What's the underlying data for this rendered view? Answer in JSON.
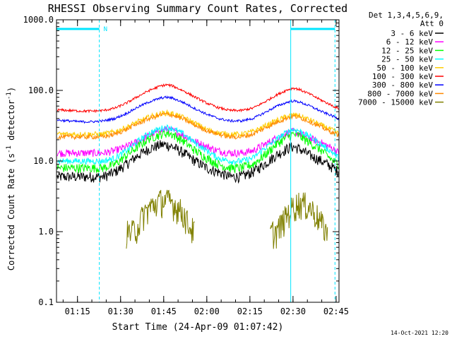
{
  "chart_data": {
    "type": "line",
    "title": "RHESSI Observing Summary Count Rates, Corrected",
    "xlabel": "Start Time (24-Apr-09 01:07:42)",
    "ylabel_main": "Corrected Count Rate (s",
    "ylabel_sup1": "-1",
    "ylabel_mid": " detector",
    "ylabel_sup2": "-1",
    "ylabel_end": ")",
    "y_scale": "log",
    "ylim": [
      0.1,
      1000
    ],
    "xlim_minutes": [
      67.7,
      166
    ],
    "x_ticks": [
      {
        "minutes": 75,
        "label": "01:15"
      },
      {
        "minutes": 90,
        "label": "01:30"
      },
      {
        "minutes": 105,
        "label": "01:45"
      },
      {
        "minutes": 120,
        "label": "02:00"
      },
      {
        "minutes": 135,
        "label": "02:15"
      },
      {
        "minutes": 150,
        "label": "02:30"
      },
      {
        "minutes": 165,
        "label": "02:45"
      }
    ],
    "y_ticks": [
      {
        "value": 0.1,
        "label": "0.1"
      },
      {
        "value": 1,
        "label": "1.0"
      },
      {
        "value": 10,
        "label": "10.0"
      },
      {
        "value": 100,
        "label": "100.0"
      },
      {
        "value": 1000,
        "label": "1000.0"
      }
    ],
    "legend_header": [
      "Det 1,3,4,5,6,9,",
      "Att 0"
    ],
    "legend_position": "right",
    "series": [
      {
        "name": "3 - 6 keV",
        "color": "#000000",
        "x": [
          68,
          72,
          76,
          80,
          84,
          88,
          92,
          96,
          100,
          104,
          106,
          108,
          112,
          116,
          120,
          124,
          128,
          132,
          136,
          140,
          144,
          148,
          150,
          152,
          156,
          160,
          164,
          166
        ],
        "y": [
          6,
          6,
          6,
          6,
          6,
          7,
          9,
          12,
          15,
          17,
          17,
          16,
          13,
          10,
          8,
          7,
          6,
          6,
          7,
          9,
          12,
          15,
          16,
          15,
          12,
          10,
          8,
          7
        ]
      },
      {
        "name": "6 - 12 keV",
        "color": "#ff00ff",
        "x": [
          68,
          72,
          76,
          80,
          84,
          88,
          92,
          96,
          100,
          104,
          106,
          108,
          112,
          116,
          120,
          124,
          128,
          132,
          136,
          140,
          144,
          148,
          150,
          152,
          156,
          160,
          164,
          166
        ],
        "y": [
          13,
          13,
          13,
          13,
          13,
          14,
          16,
          19,
          23,
          27,
          28,
          27,
          23,
          19,
          16,
          14,
          13,
          13,
          14,
          17,
          21,
          25,
          26,
          25,
          21,
          18,
          15,
          13
        ]
      },
      {
        "name": "12 - 25 keV",
        "color": "#00ff00",
        "x": [
          68,
          72,
          76,
          80,
          84,
          88,
          92,
          96,
          100,
          104,
          106,
          108,
          112,
          116,
          120,
          124,
          128,
          132,
          136,
          140,
          144,
          148,
          150,
          152,
          156,
          160,
          164,
          166
        ],
        "y": [
          8,
          8,
          8,
          8,
          8,
          9,
          12,
          16,
          21,
          24,
          25,
          24,
          19,
          14,
          11,
          9,
          8,
          8,
          9,
          12,
          17,
          22,
          24,
          23,
          18,
          14,
          10,
          9
        ]
      },
      {
        "name": "25 - 50 keV",
        "color": "#00ffff",
        "x": [
          68,
          72,
          76,
          80,
          84,
          88,
          92,
          96,
          100,
          104,
          106,
          108,
          112,
          116,
          120,
          124,
          128,
          132,
          136,
          140,
          144,
          148,
          150,
          152,
          156,
          160,
          164,
          166
        ],
        "y": [
          10,
          10,
          10,
          10,
          10,
          11,
          14,
          19,
          25,
          29,
          30,
          29,
          24,
          18,
          14,
          11,
          10,
          10,
          11,
          15,
          20,
          26,
          28,
          27,
          22,
          17,
          13,
          11
        ]
      },
      {
        "name": "50 - 100 keV",
        "color": "#ffcc00",
        "x": [
          68,
          72,
          76,
          80,
          84,
          88,
          92,
          96,
          100,
          104,
          106,
          108,
          112,
          116,
          120,
          124,
          128,
          132,
          136,
          140,
          144,
          148,
          150,
          152,
          156,
          160,
          164,
          166
        ],
        "y": [
          24,
          24,
          24,
          24,
          24,
          26,
          30,
          36,
          42,
          47,
          48,
          47,
          41,
          34,
          28,
          25,
          24,
          24,
          26,
          31,
          37,
          43,
          45,
          44,
          38,
          32,
          27,
          24
        ]
      },
      {
        "name": "100 - 300 keV",
        "color": "#ff0000",
        "x": [
          68,
          72,
          76,
          80,
          84,
          88,
          92,
          96,
          100,
          104,
          106,
          108,
          112,
          116,
          120,
          124,
          128,
          132,
          136,
          140,
          144,
          148,
          150,
          152,
          156,
          160,
          164,
          166
        ],
        "y": [
          53,
          52,
          51,
          51,
          52,
          56,
          66,
          82,
          100,
          116,
          120,
          116,
          98,
          80,
          66,
          57,
          52,
          52,
          56,
          68,
          85,
          102,
          108,
          104,
          88,
          72,
          60,
          55
        ]
      },
      {
        "name": "300 - 800 keV",
        "color": "#0000ff",
        "x": [
          68,
          72,
          76,
          80,
          84,
          88,
          92,
          96,
          100,
          104,
          106,
          108,
          112,
          116,
          120,
          124,
          128,
          132,
          136,
          140,
          144,
          148,
          150,
          152,
          156,
          160,
          164,
          166
        ],
        "y": [
          38,
          37,
          36,
          36,
          37,
          40,
          47,
          58,
          69,
          78,
          80,
          78,
          67,
          55,
          46,
          40,
          37,
          37,
          40,
          48,
          59,
          68,
          71,
          69,
          60,
          50,
          43,
          39
        ]
      },
      {
        "name": "800 - 7000 keV",
        "color": "#ff8800",
        "x": [
          68,
          72,
          76,
          80,
          84,
          88,
          92,
          96,
          100,
          104,
          106,
          108,
          112,
          116,
          120,
          124,
          128,
          132,
          136,
          140,
          144,
          148,
          150,
          152,
          156,
          160,
          164,
          166
        ],
        "y": [
          22,
          22,
          22,
          22,
          22,
          24,
          28,
          34,
          40,
          45,
          46,
          45,
          39,
          32,
          27,
          24,
          22,
          22,
          24,
          29,
          35,
          41,
          43,
          42,
          36,
          30,
          25,
          23
        ]
      },
      {
        "name": "7000 - 15000 keV",
        "color": "#808000",
        "x": [
          92,
          94,
          96,
          98,
          100,
          102,
          104,
          106,
          108,
          110,
          112,
          114,
          116
        ],
        "y": [
          1,
          1,
          1.2,
          1.8,
          2.2,
          2.5,
          2.8,
          2.8,
          2.6,
          2.2,
          1.8,
          1.2,
          1
        ]
      }
    ],
    "series2_x": [
      142,
      144,
      146,
      148,
      150,
      152,
      154,
      156,
      158,
      160,
      162
    ],
    "series2_y": [
      1,
      1,
      1.3,
      1.8,
      2.3,
      2.6,
      2.5,
      2.2,
      1.8,
      1.3,
      1
    ],
    "solid_vlines_minutes": [
      67.7,
      149.2
    ],
    "dashed_vlines_minutes": [
      82.6,
      164.6
    ],
    "top_bars": [
      {
        "from": 67.7,
        "to": 82.6
      },
      {
        "from": 149.2,
        "to": 164.6
      }
    ],
    "top_bar_color": "#00e5ff",
    "flag_label": "N"
  },
  "footer_timestamp": "14-Oct-2021 12:20"
}
